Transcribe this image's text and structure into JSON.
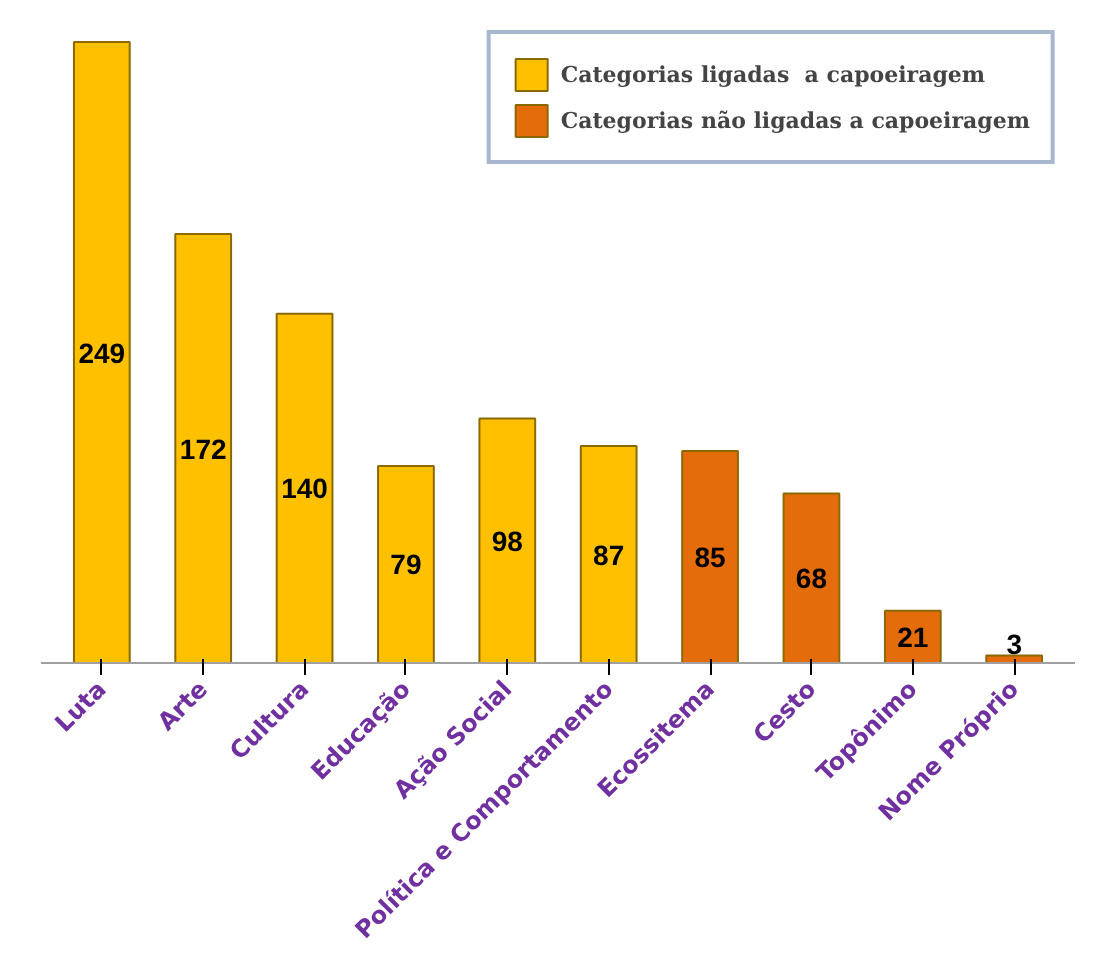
{
  "chart_data": {
    "type": "bar",
    "categories": [
      "Luta",
      "Arte",
      "Cultura",
      "Educação",
      "Ação Social",
      "Política e Comportamento",
      "Ecossitema",
      "Cesto",
      "Topônimo",
      "Nome Próprio"
    ],
    "series": [
      {
        "name": "Categorias ligadas  a capoeiragem",
        "color": "#ffc000",
        "values": [
          249,
          172,
          140,
          79,
          98,
          87,
          null,
          null,
          null,
          null
        ]
      },
      {
        "name": "Categorias não ligadas a capoeiragem",
        "color": "#e46c0a",
        "values": [
          null,
          null,
          null,
          null,
          null,
          null,
          85,
          68,
          21,
          3
        ]
      }
    ],
    "tick_labels": "x",
    "data_labels": true,
    "legend": "top right",
    "grid": false
  }
}
